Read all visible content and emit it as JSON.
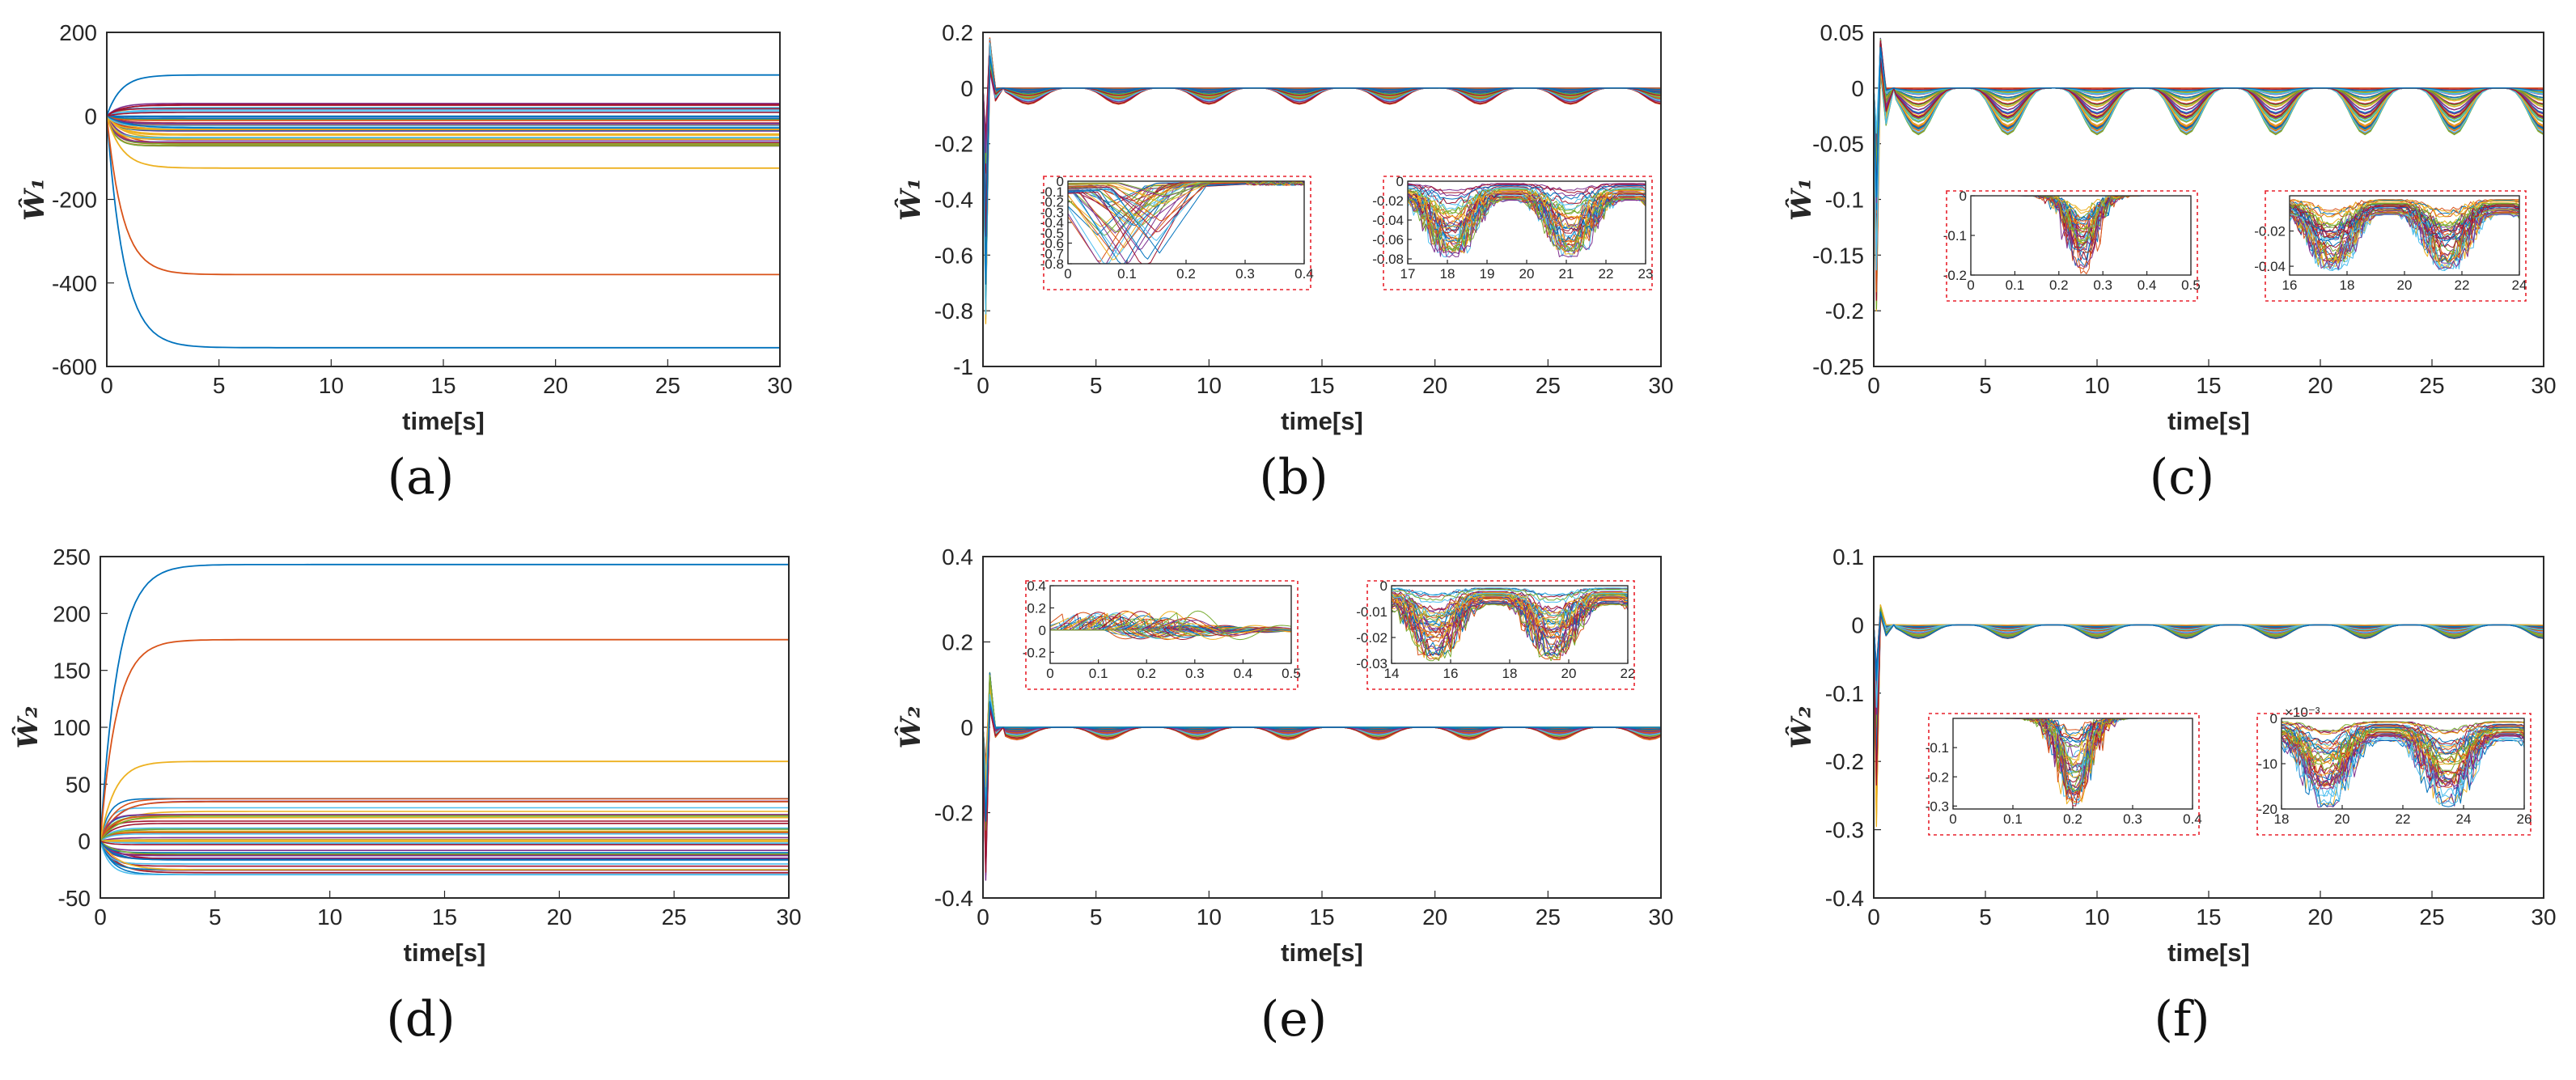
{
  "chart_data": [
    {
      "type": "line",
      "panel_label": "(a)",
      "title": "",
      "xlabel": "time[s]",
      "ylabel": "Ŵ₁",
      "xlim": [
        0,
        30
      ],
      "ylim": [
        -600,
        200
      ],
      "xticks": [
        "0",
        "5",
        "10",
        "15",
        "20",
        "25",
        "30"
      ],
      "yticks": [
        "200",
        "0",
        "-200",
        "-400",
        "-600"
      ],
      "series_model": "first-order convergence from 0 to steady value",
      "series": [
        {
          "name": "largest negative weight",
          "final": -555,
          "rate": 1.3,
          "color": "#0072BD"
        },
        {
          "name": "second negative weight",
          "final": -380,
          "rate": 1.4,
          "color": "#D95319"
        },
        {
          "name": "third negative weight",
          "final": -125,
          "rate": 1.5,
          "color": "#EDB120"
        },
        {
          "name": "largest positive weight",
          "final": 98,
          "rate": 1.6,
          "color": "#0072BD"
        }
      ],
      "band": {
        "min": -75,
        "max": 30,
        "count": 50,
        "rate": 2.0
      },
      "insets": []
    },
    {
      "type": "line",
      "panel_label": "(b)",
      "title": "",
      "xlabel": "time[s]",
      "ylabel": "Ŵ₁",
      "xlim": [
        0,
        30
      ],
      "ylim": [
        -1,
        0.2
      ],
      "xticks": [
        "0",
        "5",
        "10",
        "15",
        "20",
        "25",
        "30"
      ],
      "yticks": [
        "0.2",
        "0",
        "-0.2",
        "-0.4",
        "-0.6",
        "-0.8",
        "-1"
      ],
      "series_model": "initial spike then periodic oscillation",
      "spike": {
        "peak": 0.18,
        "trough": -0.85
      },
      "oscillation": {
        "amplitude_max": 0.06,
        "period": 4.0,
        "phase": 1.0
      },
      "series_count": 50,
      "insets": [
        {
          "xlim": [
            0,
            0.4
          ],
          "ylim": [
            -0.8,
            0
          ],
          "xticks": [
            "0",
            "0.1",
            "0.2",
            "0.3",
            "0.4"
          ],
          "yticks": [
            "0",
            "-0.2",
            "-0.4",
            "-0.6",
            "-0.8"
          ],
          "yextra": [
            "-0.1",
            "-0.3",
            "-0.5",
            "-0.7"
          ],
          "kind": "zigzag",
          "depth": 0.8
        },
        {
          "xlim": [
            17,
            23
          ],
          "ylim": [
            -0.085,
            0
          ],
          "xticks": [
            "17",
            "18",
            "19",
            "20",
            "21",
            "22",
            "23"
          ],
          "yticks": [
            "0",
            "-0.02",
            "-0.04",
            "-0.06",
            "-0.08"
          ],
          "kind": "wave",
          "depth": 0.08
        }
      ]
    },
    {
      "type": "line",
      "panel_label": "(c)",
      "title": "",
      "xlabel": "time[s]",
      "ylabel": "Ŵ₁",
      "xlim": [
        0,
        30
      ],
      "ylim": [
        -0.25,
        0.05
      ],
      "xticks": [
        "0",
        "5",
        "10",
        "15",
        "20",
        "25",
        "30"
      ],
      "yticks": [
        "0.05",
        "0",
        "-0.05",
        "-0.1",
        "-0.15",
        "-0.2",
        "-0.25"
      ],
      "series_model": "initial spike then periodic oscillation",
      "spike": {
        "peak": 0.045,
        "trough": -0.2
      },
      "oscillation": {
        "amplitude_max": 0.045,
        "period": 4.0,
        "phase": 1.0
      },
      "series_count": 50,
      "insets": [
        {
          "xlim": [
            0,
            0.5
          ],
          "ylim": [
            -0.2,
            0
          ],
          "xticks": [
            "0",
            "0.1",
            "0.2",
            "0.3",
            "0.4",
            "0.5"
          ],
          "yticks": [
            "0",
            "-0.1",
            "-0.2"
          ],
          "kind": "dip",
          "depth": 0.2
        },
        {
          "xlim": [
            16,
            24
          ],
          "ylim": [
            -0.045,
            0
          ],
          "xticks": [
            "16",
            "18",
            "20",
            "22",
            "24"
          ],
          "yticks": [
            "-0.02",
            "-0.04"
          ],
          "kind": "wave",
          "depth": 0.045
        }
      ]
    },
    {
      "type": "line",
      "panel_label": "(d)",
      "title": "",
      "xlabel": "time[s]",
      "ylabel": "Ŵ₂",
      "xlim": [
        0,
        30
      ],
      "ylim": [
        -50,
        250
      ],
      "xticks": [
        "0",
        "5",
        "10",
        "15",
        "20",
        "25",
        "30"
      ],
      "yticks": [
        "250",
        "200",
        "150",
        "100",
        "50",
        "0",
        "-50"
      ],
      "series_model": "first-order convergence from 0 to steady value",
      "series": [
        {
          "name": "largest positive weight",
          "final": 243,
          "rate": 1.3,
          "color": "#0072BD"
        },
        {
          "name": "second positive weight",
          "final": 177,
          "rate": 1.4,
          "color": "#D95319"
        },
        {
          "name": "third positive weight",
          "final": 70,
          "rate": 1.6,
          "color": "#EDB120"
        }
      ],
      "band": {
        "min": -30,
        "max": 38,
        "count": 50,
        "rate": 2.0
      },
      "insets": []
    },
    {
      "type": "line",
      "panel_label": "(e)",
      "title": "",
      "xlabel": "time[s]",
      "ylabel": "Ŵ₂",
      "xlim": [
        0,
        30
      ],
      "ylim": [
        -0.4,
        0.4
      ],
      "xticks": [
        "0",
        "5",
        "10",
        "15",
        "20",
        "25",
        "30"
      ],
      "yticks": [
        "0.4",
        "0.2",
        "0",
        "-0.2",
        "-0.4"
      ],
      "series_model": "initial spike then periodic oscillation",
      "spike": {
        "peak": 0.13,
        "trough": -0.36
      },
      "oscillation": {
        "amplitude_max": 0.03,
        "period": 4.0,
        "phase": 0.5
      },
      "series_count": 50,
      "insets": [
        {
          "xlim": [
            0,
            0.5
          ],
          "ylim": [
            -0.3,
            0.4
          ],
          "xticks": [
            "0",
            "0.1",
            "0.2",
            "0.3",
            "0.4",
            "0.5"
          ],
          "yticks": [
            "0.4",
            "0.2",
            "0",
            "-0.2"
          ],
          "kind": "zigzag2",
          "depth": 0.3
        },
        {
          "xlim": [
            14,
            22
          ],
          "ylim": [
            -0.03,
            0
          ],
          "xticks": [
            "14",
            "16",
            "18",
            "20",
            "22"
          ],
          "yticks": [
            "0",
            "-0.01",
            "-0.02",
            "-0.03"
          ],
          "kind": "wave",
          "depth": 0.03
        }
      ]
    },
    {
      "type": "line",
      "panel_label": "(f)",
      "title": "",
      "xlabel": "time[s]",
      "ylabel": "Ŵ₂",
      "xlim": [
        0,
        30
      ],
      "ylim": [
        -0.4,
        0.1
      ],
      "xticks": [
        "0",
        "5",
        "10",
        "15",
        "20",
        "25",
        "30"
      ],
      "yticks": [
        "0.1",
        "0",
        "-0.1",
        "-0.2",
        "-0.3",
        "-0.4"
      ],
      "series_model": "initial spike then periodic oscillation",
      "spike": {
        "peak": 0.03,
        "trough": -0.3
      },
      "oscillation": {
        "amplitude_max": 0.02,
        "period": 4.0,
        "phase": 1.0
      },
      "series_count": 50,
      "insets": [
        {
          "xlim": [
            0,
            0.4
          ],
          "ylim": [
            -0.31,
            0
          ],
          "xticks": [
            "0",
            "0.1",
            "0.2",
            "0.3",
            "0.4"
          ],
          "yticks": [
            "-0.1",
            "-0.2",
            "-0.3"
          ],
          "kind": "dip",
          "depth": 0.31
        },
        {
          "xlim": [
            18,
            26
          ],
          "ylim": [
            -20,
            0
          ],
          "xticks": [
            "18",
            "20",
            "22",
            "24",
            "26"
          ],
          "yticks": [
            "0",
            "-10",
            "-20"
          ],
          "exponent": "×10⁻³",
          "kind": "wave",
          "depth": 20
        }
      ]
    }
  ]
}
